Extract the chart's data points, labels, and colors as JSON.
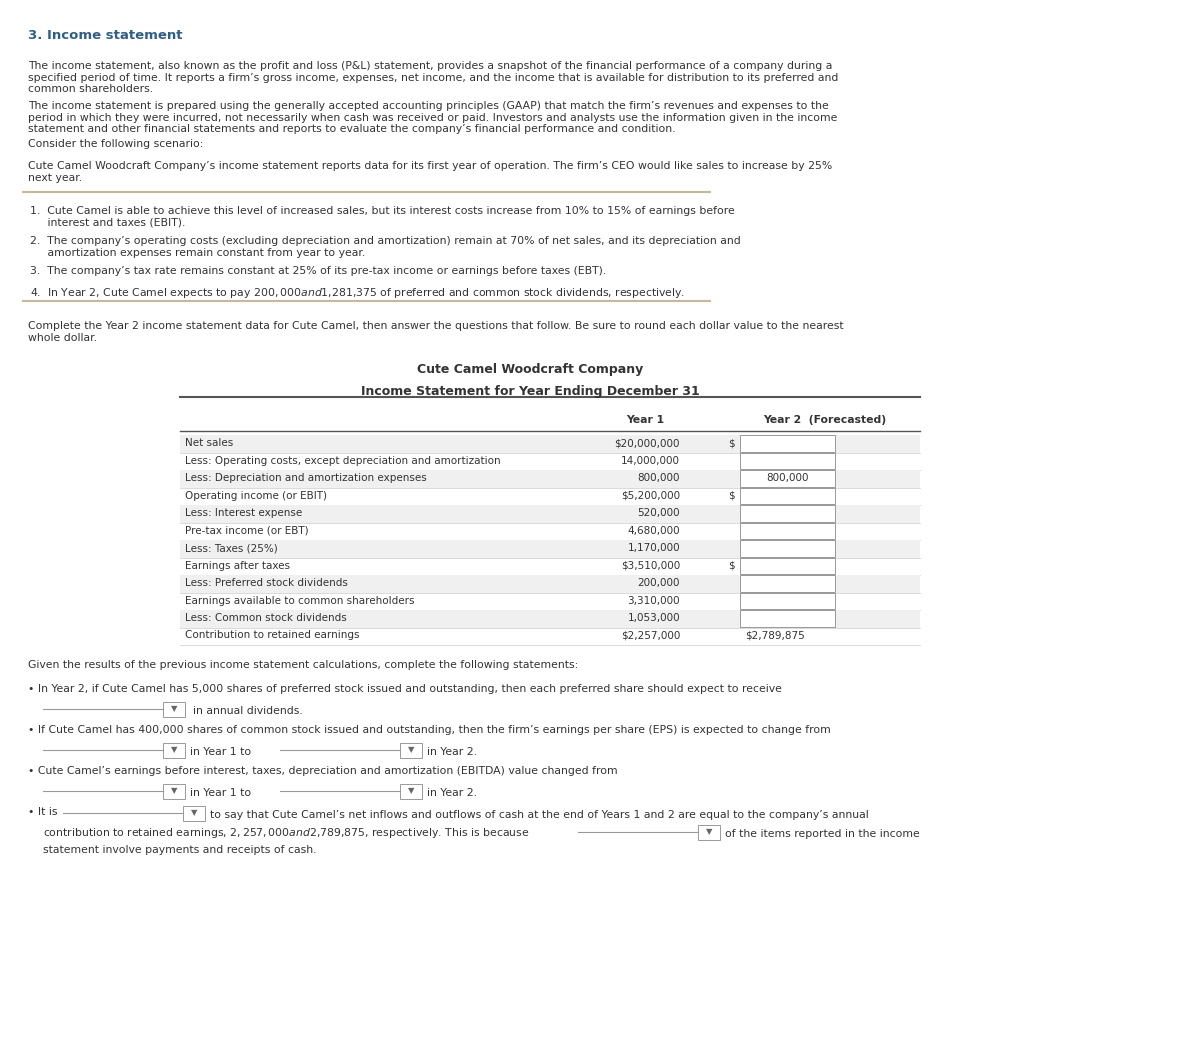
{
  "title_heading": "3. Income statement",
  "bg_color": "#ffffff",
  "text_color": "#1a1a2e",
  "dark_blue": "#1a3a5c",
  "heading_color": "#2c5f8a",
  "body_text_color": "#333333",
  "box_border_color": "#999999",
  "box_fill_color": "#f5f5f5",
  "tan_line_color": "#c8b89a",
  "table_header_line_color": "#555555",
  "table_row_alt_color": "#f0f0f0",
  "para1": "The income statement, also known as the profit and loss (P&L) statement, provides a snapshot of the financial performance of a company during a\nspecified period of time. It reports a firm’s gross income, expenses, net income, and the income that is available for distribution to its preferred and\ncommon shareholders.",
  "para2": "The income statement is prepared using the generally accepted accounting principles (GAAP) that match the firm’s revenues and expenses to the\nperiod in which they were incurred, not necessarily when cash was received or paid. Investors and analysts use the information given in the income\nstatement and other financial statements and reports to evaluate the company’s financial performance and condition.",
  "para3": "Consider the following scenario:",
  "para4": "Cute Camel Woodcraft Company’s income statement reports data for its first year of operation. The firm’s CEO would like sales to increase by 25%\nnext year.",
  "bullet1": "1.  Cute Camel is able to achieve this level of increased sales, but its interest costs increase from 10% to 15% of earnings before\n     interest and taxes (EBIT).",
  "bullet2": "2.  The company’s operating costs (excluding depreciation and amortization) remain at 70% of net sales, and its depreciation and\n     amortization expenses remain constant from year to year.",
  "bullet3": "3.  The company’s tax rate remains constant at 25% of its pre-tax income or earnings before taxes (EBT).",
  "bullet4": "4.  In Year 2, Cute Camel expects to pay $200,000 and $1,281,375 of preferred and common stock dividends, respectively.",
  "para5": "Complete the Year 2 income statement data for Cute Camel, then answer the questions that follow. Be sure to round each dollar value to the nearest\nwhole dollar.",
  "table_title": "Cute Camel Woodcraft Company",
  "table_subtitle": "Income Statement for Year Ending December 31",
  "col_headers": [
    "Year 1",
    "Year 2  (Forecasted)"
  ],
  "row_labels": [
    "Net sales",
    "Less: Operating costs, except depreciation and amortization",
    "Less: Depreciation and amortization expenses",
    "Operating income (or EBIT)",
    "Less: Interest expense",
    "Pre-tax income (or EBT)",
    "Less: Taxes (25%)",
    "Earnings after taxes",
    "Less: Preferred stock dividends",
    "Earnings available to common shareholders",
    "Less: Common stock dividends",
    "Contribution to retained earnings"
  ],
  "year1_values": [
    "$20,000,000",
    "14,000,000",
    "800,000",
    "$5,200,000",
    "520,000",
    "4,680,000",
    "1,170,000",
    "$3,510,000",
    "200,000",
    "3,310,000",
    "1,053,000",
    "$2,257,000"
  ],
  "year2_has_dollar": [
    true,
    false,
    false,
    true,
    false,
    false,
    false,
    true,
    false,
    false,
    false,
    false
  ],
  "year2_special": [
    null,
    null,
    "800,000",
    null,
    null,
    null,
    null,
    null,
    null,
    null,
    null,
    "$2,789,875"
  ],
  "footer_lines": [
    "Given the results of the previous income statement calculations, complete the following statements:",
    "• In Year 2, if Cute Camel has 5,000 shares of preferred stock issued and outstanding, then each preferred share should expect to receive",
    "  _____________ ▼  in annual dividends.",
    "• If Cute Camel has 400,000 shares of common stock issued and outstanding, then the firm’s earnings per share (EPS) is expected to change from",
    "  _____________ ▼  in Year 1 to  _____________ ▼  in Year 2.",
    "• Cute Camel’s earnings before interest, taxes, depreciation and amortization (EBITDA) value changed from  _____________ ▼  in Year 1 to",
    "  _____________ ▼  in Year 2.",
    "• It is  _____________ ▼  to say that Cute Camel’s net inflows and outflows of cash at the end of Years 1 and 2 are equal to the company’s annual",
    "  contribution to retained earnings, $2,257,000 and $2,789,875, respectively. This is because  _____________ ▼  of the items reported in the income",
    "  statement involve payments and receipts of cash."
  ]
}
